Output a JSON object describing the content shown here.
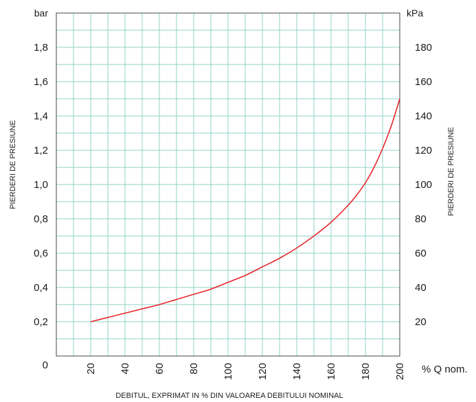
{
  "chart_data": {
    "type": "line",
    "title": "",
    "xlabel": "DEBITUL, EXPRIMAT IN % DIN VALOAREA DEBITULUI NOMINAL",
    "ylabel_left": "PIERDERI DE PRESIUNE",
    "ylabel_right": "PIERDERI DE PRESIUNE",
    "unit_left": "bar",
    "unit_right": "kPa",
    "x_unit_label": "% Q nom.",
    "origin_label": "0",
    "xlim": [
      0,
      200
    ],
    "ylim": [
      0,
      2.0
    ],
    "x_ticks": [
      "20",
      "40",
      "60",
      "80",
      "100",
      "120",
      "140",
      "160",
      "180",
      "200"
    ],
    "y_ticks_left": [
      "0,2",
      "0,4",
      "0,6",
      "0,8",
      "1,0",
      "1,2",
      "1,4",
      "1,6",
      "1,8"
    ],
    "y_ticks_right": [
      "20",
      "40",
      "60",
      "80",
      "100",
      "120",
      "140",
      "160",
      "180"
    ],
    "grid": true,
    "series": [
      {
        "color": "#e8262d",
        "x": [
          20,
          30,
          40,
          50,
          60,
          70,
          80,
          90,
          100,
          110,
          120,
          130,
          140,
          150,
          160,
          170,
          175,
          180,
          185,
          190,
          195,
          200
        ],
        "y": [
          0.2,
          0.225,
          0.25,
          0.275,
          0.3,
          0.33,
          0.36,
          0.39,
          0.43,
          0.47,
          0.52,
          0.57,
          0.63,
          0.7,
          0.78,
          0.88,
          0.94,
          1.01,
          1.1,
          1.21,
          1.34,
          1.5
        ]
      }
    ]
  }
}
